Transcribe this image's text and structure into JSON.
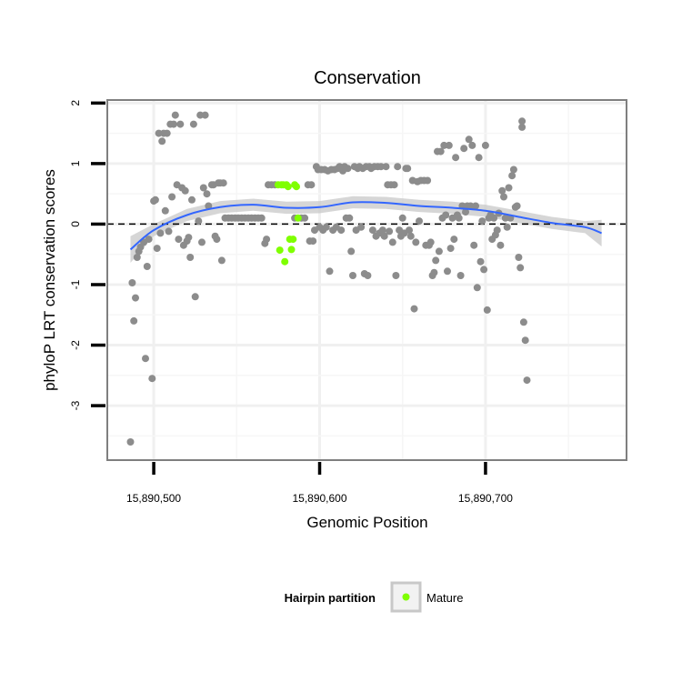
{
  "chart_data": {
    "type": "scatter",
    "title": "Conservation",
    "xlabel": "Genomic Position",
    "ylabel": "phyloP LRT conservation scores",
    "xlim": [
      15890472,
      15890785
    ],
    "ylim": [
      -3.9,
      2.05
    ],
    "x_ticks": [
      {
        "value": 15890500,
        "label": "15,890,500"
      },
      {
        "value": 15890600,
        "label": "15,890,600"
      },
      {
        "value": 15890700,
        "label": "15,890,700"
      }
    ],
    "y_ticks": [
      {
        "value": -3,
        "label": "-3"
      },
      {
        "value": -2,
        "label": "-2"
      },
      {
        "value": -1,
        "label": "-1"
      },
      {
        "value": 0,
        "label": "0"
      },
      {
        "value": 1,
        "label": "1"
      },
      {
        "value": 2,
        "label": "2"
      }
    ],
    "reference_line": {
      "y": 0,
      "style": "dashed"
    },
    "grid": true,
    "legend": {
      "title": "Hairpin partition",
      "placement": "bottom",
      "entries": [
        {
          "label": "Mature",
          "color": "#7fff00"
        }
      ]
    },
    "colors": {
      "points": "#8c8c8c",
      "mature": "#7fff00",
      "smooth_line": "#3366ff",
      "smooth_band": "#c8c8c8",
      "panel_border": "#7f7f7f"
    },
    "series": [
      {
        "points": [
          [
            15890486,
            -3.6
          ],
          [
            15890487,
            -0.97
          ],
          [
            15890488,
            -1.6
          ],
          [
            15890489,
            -1.22
          ],
          [
            15890490,
            -0.55
          ],
          [
            15890491,
            -0.45
          ],
          [
            15890492,
            -0.38
          ],
          [
            15890494,
            -0.3
          ],
          [
            15890495,
            -2.22
          ],
          [
            15890496,
            -0.7
          ],
          [
            15890497,
            -0.25
          ],
          [
            15890499,
            -2.55
          ],
          [
            15890500,
            0.38
          ],
          [
            15890501,
            0.4
          ],
          [
            15890502,
            -0.4
          ],
          [
            15890503,
            1.5
          ],
          [
            15890504,
            -0.15
          ],
          [
            15890505,
            1.37
          ],
          [
            15890506,
            1.5
          ],
          [
            15890507,
            0.22
          ],
          [
            15890508,
            1.5
          ],
          [
            15890509,
            -0.12
          ],
          [
            15890510,
            1.65
          ],
          [
            15890511,
            0.45
          ],
          [
            15890512,
            1.65
          ],
          [
            15890513,
            1.8
          ],
          [
            15890514,
            0.65
          ],
          [
            15890515,
            -0.25
          ],
          [
            15890516,
            1.65
          ],
          [
            15890517,
            0.6
          ],
          [
            15890518,
            -0.35
          ],
          [
            15890519,
            0.55
          ],
          [
            15890520,
            -0.28
          ],
          [
            15890521,
            -0.22
          ],
          [
            15890522,
            -0.55
          ],
          [
            15890523,
            0.4
          ],
          [
            15890524,
            1.65
          ],
          [
            15890525,
            -1.2
          ],
          [
            15890527,
            0.05
          ],
          [
            15890528,
            1.8
          ],
          [
            15890529,
            -0.3
          ],
          [
            15890530,
            0.6
          ],
          [
            15890531,
            1.8
          ],
          [
            15890532,
            0.5
          ],
          [
            15890533,
            0.3
          ],
          [
            15890535,
            0.65
          ],
          [
            15890536,
            0.65
          ],
          [
            15890537,
            -0.2
          ],
          [
            15890538,
            -0.25
          ],
          [
            15890539,
            0.68
          ],
          [
            15890540,
            0.68
          ],
          [
            15890541,
            -0.6
          ],
          [
            15890542,
            0.68
          ],
          [
            15890543,
            0.1
          ],
          [
            15890545,
            0.1
          ],
          [
            15890547,
            0.1
          ],
          [
            15890549,
            0.1
          ],
          [
            15890551,
            0.1
          ],
          [
            15890553,
            0.1
          ],
          [
            15890555,
            0.1
          ],
          [
            15890557,
            0.1
          ],
          [
            15890559,
            0.1
          ],
          [
            15890561,
            0.1
          ],
          [
            15890563,
            0.1
          ],
          [
            15890565,
            0.1
          ],
          [
            15890567,
            -0.32
          ],
          [
            15890568,
            -0.25
          ],
          [
            15890569,
            0.65
          ],
          [
            15890571,
            0.65
          ],
          [
            15890573,
            0.65
          ],
          [
            15890585,
            0.1
          ],
          [
            15890589,
            0.1
          ],
          [
            15890591,
            0.1
          ],
          [
            15890593,
            0.65
          ],
          [
            15890594,
            -0.28
          ],
          [
            15890595,
            0.65
          ],
          [
            15890596,
            -0.28
          ],
          [
            15890597,
            -0.1
          ],
          [
            15890598,
            0.95
          ],
          [
            15890599,
            0.9
          ],
          [
            15890600,
            -0.05
          ],
          [
            15890601,
            0.9
          ],
          [
            15890602,
            -0.1
          ],
          [
            15890603,
            0.9
          ],
          [
            15890604,
            -0.05
          ],
          [
            15890605,
            0.88
          ],
          [
            15890606,
            -0.78
          ],
          [
            15890607,
            0.9
          ],
          [
            15890608,
            -0.1
          ],
          [
            15890609,
            0.9
          ],
          [
            15890610,
            -0.05
          ],
          [
            15890611,
            0.92
          ],
          [
            15890612,
            0.95
          ],
          [
            15890613,
            -0.1
          ],
          [
            15890614,
            0.88
          ],
          [
            15890615,
            0.95
          ],
          [
            15890616,
            0.1
          ],
          [
            15890617,
            0.92
          ],
          [
            15890618,
            0.1
          ],
          [
            15890619,
            -0.45
          ],
          [
            15890620,
            -0.85
          ],
          [
            15890621,
            0.95
          ],
          [
            15890622,
            -0.1
          ],
          [
            15890623,
            0.92
          ],
          [
            15890624,
            0.95
          ],
          [
            15890625,
            -0.05
          ],
          [
            15890626,
            0.92
          ],
          [
            15890627,
            -0.82
          ],
          [
            15890628,
            0.95
          ],
          [
            15890629,
            -0.85
          ],
          [
            15890630,
            0.95
          ],
          [
            15890631,
            0.92
          ],
          [
            15890632,
            -0.1
          ],
          [
            15890633,
            0.95
          ],
          [
            15890634,
            -0.2
          ],
          [
            15890635,
            0.95
          ],
          [
            15890636,
            -0.15
          ],
          [
            15890637,
            0.95
          ],
          [
            15890638,
            -0.1
          ],
          [
            15890639,
            -0.2
          ],
          [
            15890640,
            0.95
          ],
          [
            15890641,
            0.65
          ],
          [
            15890642,
            -0.12
          ],
          [
            15890643,
            0.65
          ],
          [
            15890644,
            -0.3
          ],
          [
            15890645,
            0.65
          ],
          [
            15890646,
            -0.85
          ],
          [
            15890647,
            0.95
          ],
          [
            15890648,
            -0.1
          ],
          [
            15890649,
            -0.2
          ],
          [
            15890650,
            0.1
          ],
          [
            15890651,
            -0.15
          ],
          [
            15890652,
            0.92
          ],
          [
            15890653,
            0.92
          ],
          [
            15890654,
            -0.1
          ],
          [
            15890655,
            -0.2
          ],
          [
            15890656,
            0.72
          ],
          [
            15890657,
            -1.4
          ],
          [
            15890658,
            -0.3
          ],
          [
            15890659,
            0.7
          ],
          [
            15890660,
            0.05
          ],
          [
            15890661,
            0.72
          ],
          [
            15890663,
            0.72
          ],
          [
            15890664,
            -0.35
          ],
          [
            15890665,
            0.72
          ],
          [
            15890666,
            -0.35
          ],
          [
            15890667,
            -0.3
          ],
          [
            15890668,
            -0.85
          ],
          [
            15890669,
            -0.8
          ],
          [
            15890670,
            -0.6
          ],
          [
            15890671,
            1.2
          ],
          [
            15890672,
            -0.45
          ],
          [
            15890673,
            1.2
          ],
          [
            15890674,
            0.1
          ],
          [
            15890675,
            1.3
          ],
          [
            15890676,
            0.15
          ],
          [
            15890677,
            -0.78
          ],
          [
            15890678,
            1.3
          ],
          [
            15890679,
            -0.4
          ],
          [
            15890680,
            0.1
          ],
          [
            15890681,
            -0.25
          ],
          [
            15890682,
            1.1
          ],
          [
            15890683,
            0.15
          ],
          [
            15890684,
            0.1
          ],
          [
            15890685,
            -0.85
          ],
          [
            15890686,
            0.3
          ],
          [
            15890687,
            1.25
          ],
          [
            15890688,
            0.2
          ],
          [
            15890689,
            0.3
          ],
          [
            15890690,
            1.4
          ],
          [
            15890691,
            0.3
          ],
          [
            15890692,
            1.3
          ],
          [
            15890693,
            -0.35
          ],
          [
            15890694,
            0.3
          ],
          [
            15890695,
            -1.05
          ],
          [
            15890696,
            1.1
          ],
          [
            15890697,
            -0.62
          ],
          [
            15890698,
            0.05
          ],
          [
            15890699,
            -0.75
          ],
          [
            15890700,
            1.3
          ],
          [
            15890701,
            -1.42
          ],
          [
            15890702,
            0.1
          ],
          [
            15890703,
            0.15
          ],
          [
            15890704,
            -0.25
          ],
          [
            15890705,
            0.1
          ],
          [
            15890706,
            -0.18
          ],
          [
            15890707,
            -0.1
          ],
          [
            15890708,
            0.18
          ],
          [
            15890709,
            -0.35
          ],
          [
            15890710,
            0.55
          ],
          [
            15890711,
            0.45
          ],
          [
            15890712,
            0.1
          ],
          [
            15890713,
            -0.05
          ],
          [
            15890714,
            0.6
          ],
          [
            15890715,
            0.1
          ],
          [
            15890716,
            0.8
          ],
          [
            15890717,
            0.9
          ],
          [
            15890718,
            0.28
          ],
          [
            15890719,
            0.3
          ],
          [
            15890720,
            -0.55
          ],
          [
            15890721,
            -0.72
          ],
          [
            15890722,
            1.6
          ],
          [
            15890722,
            1.7
          ],
          [
            15890723,
            -1.62
          ],
          [
            15890724,
            -1.92
          ],
          [
            15890725,
            -2.58
          ]
        ]
      },
      {
        "name": "Mature",
        "points": [
          [
            15890575,
            0.65
          ],
          [
            15890576,
            -0.43
          ],
          [
            15890577,
            0.65
          ],
          [
            15890578,
            0.65
          ],
          [
            15890579,
            -0.62
          ],
          [
            15890580,
            0.65
          ],
          [
            15890581,
            0.62
          ],
          [
            15890582,
            -0.25
          ],
          [
            15890583,
            -0.42
          ],
          [
            15890584,
            -0.25
          ],
          [
            15890585,
            0.65
          ],
          [
            15890586,
            0.62
          ],
          [
            15890587,
            0.1
          ]
        ]
      }
    ],
    "smooth": [
      [
        15890486,
        -0.42
      ],
      [
        15890500,
        -0.1
      ],
      [
        15890520,
        0.15
      ],
      [
        15890540,
        0.28
      ],
      [
        15890560,
        0.32
      ],
      [
        15890580,
        0.27
      ],
      [
        15890600,
        0.28
      ],
      [
        15890620,
        0.36
      ],
      [
        15890640,
        0.35
      ],
      [
        15890660,
        0.3
      ],
      [
        15890680,
        0.27
      ],
      [
        15890700,
        0.22
      ],
      [
        15890720,
        0.12
      ],
      [
        15890740,
        0.02
      ],
      [
        15890760,
        -0.05
      ],
      [
        15890770,
        -0.15
      ]
    ]
  }
}
